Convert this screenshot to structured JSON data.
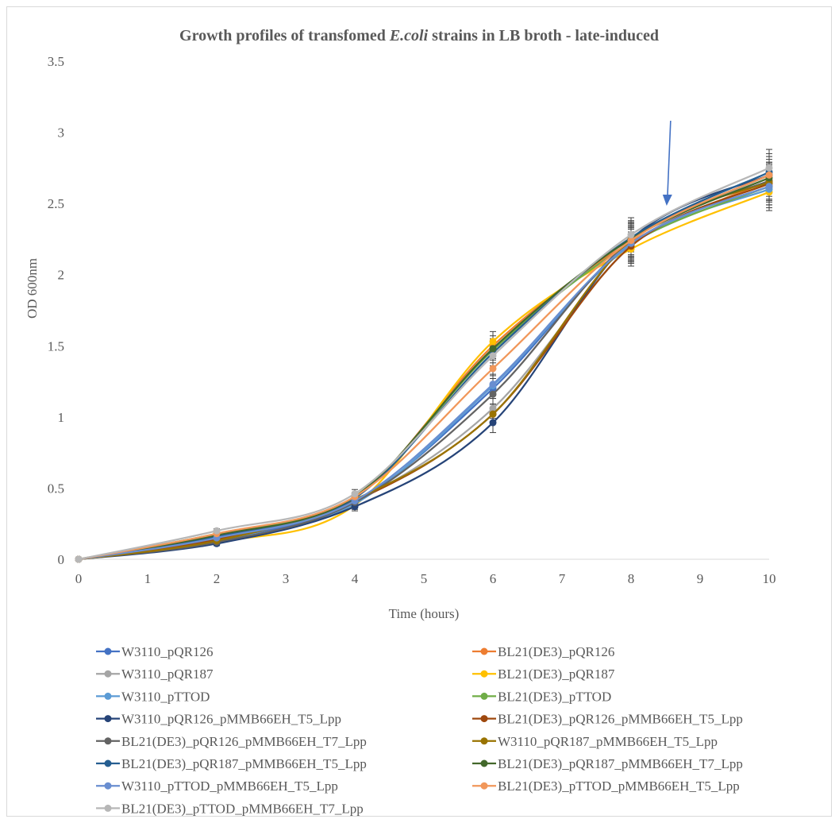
{
  "chart_data": {
    "type": "line",
    "title_prefix": "Growth profiles of transfomed ",
    "title_italic": "E.coli",
    "title_suffix": " strains in LB broth - late-induced",
    "xlabel": "Time (hours)",
    "ylabel": "OD 600nm",
    "xlim": [
      0,
      10
    ],
    "ylim": [
      0,
      3.5
    ],
    "x_ticks": [
      "0",
      "1",
      "2",
      "3",
      "4",
      "5",
      "6",
      "7",
      "8",
      "9",
      "10"
    ],
    "y_ticks": [
      "0",
      "0.5",
      "1",
      "1.5",
      "2",
      "2.5",
      "3",
      "3.5"
    ],
    "x": [
      0,
      2,
      4,
      6,
      8,
      10
    ],
    "grid": false,
    "legend_position": "bottom",
    "annotation": "arrow pointing down at about 8.5 hours",
    "series": [
      {
        "name": "W3110_pQR126",
        "color": "#4472C4",
        "values": [
          0,
          0.14,
          0.4,
          1.2,
          2.22,
          2.62
        ]
      },
      {
        "name": "BL21(DE3)_pQR126",
        "color": "#ED7D31",
        "values": [
          0,
          0.17,
          0.43,
          1.5,
          2.23,
          2.66
        ]
      },
      {
        "name": "W3110_pQR187",
        "color": "#A5A5A5",
        "values": [
          0,
          0.15,
          0.41,
          1.06,
          2.2,
          2.7
        ]
      },
      {
        "name": "BL21(DE3)_pQR187",
        "color": "#FFC000",
        "values": [
          0,
          0.12,
          0.38,
          1.53,
          2.18,
          2.58
        ]
      },
      {
        "name": "W3110_pTTOD",
        "color": "#5B9BD5",
        "values": [
          0,
          0.13,
          0.39,
          1.22,
          2.21,
          2.6
        ]
      },
      {
        "name": "BL21(DE3)_pTTOD",
        "color": "#70AD47",
        "values": [
          0,
          0.18,
          0.44,
          1.47,
          2.22,
          2.62
        ]
      },
      {
        "name": "W3110_pQR126_pMMB66EH_T5_Lpp",
        "color": "#264478",
        "values": [
          0,
          0.11,
          0.37,
          0.96,
          2.25,
          2.7
        ]
      },
      {
        "name": "BL21(DE3)_pQR126_pMMB66EH_T5_Lpp",
        "color": "#9E480E",
        "values": [
          0,
          0.14,
          0.41,
          1.02,
          2.2,
          2.64
        ]
      },
      {
        "name": "BL21(DE3)_pQR126_pMMB66EH_T7_Lpp",
        "color": "#636363",
        "values": [
          0,
          0.12,
          0.4,
          1.16,
          2.24,
          2.66
        ]
      },
      {
        "name": "W3110_pQR187_pMMB66EH_T5_Lpp",
        "color": "#997300",
        "values": [
          0,
          0.13,
          0.42,
          1.02,
          2.24,
          2.65
        ]
      },
      {
        "name": "BL21(DE3)_pQR187_pMMB66EH_T5_Lpp",
        "color": "#255E91",
        "values": [
          0,
          0.16,
          0.43,
          1.45,
          2.26,
          2.72
        ]
      },
      {
        "name": "BL21(DE3)_pQR187_pMMB66EH_T7_Lpp",
        "color": "#43682B",
        "values": [
          0,
          0.17,
          0.44,
          1.48,
          2.25,
          2.68
        ]
      },
      {
        "name": "W3110_pTTOD_pMMB66EH_T5_Lpp",
        "color": "#698ED0",
        "values": [
          0,
          0.15,
          0.41,
          1.23,
          2.22,
          2.62
        ]
      },
      {
        "name": "BL21(DE3)_pTTOD_pMMB66EH_T5_Lpp",
        "color": "#F1975A",
        "values": [
          0,
          0.18,
          0.44,
          1.34,
          2.24,
          2.7
        ]
      },
      {
        "name": "BL21(DE3)_pTTOD_pMMB66EH_T7_Lpp",
        "color": "#B7B7B7",
        "values": [
          0,
          0.2,
          0.46,
          1.43,
          2.28,
          2.75
        ]
      }
    ]
  }
}
